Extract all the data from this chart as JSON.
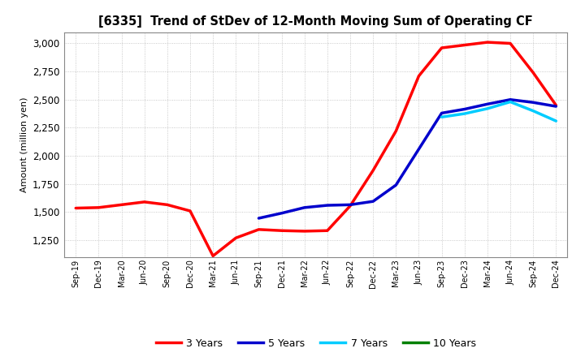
{
  "title": "[6335]  Trend of StDev of 12-Month Moving Sum of Operating CF",
  "ylabel": "Amount (million yen)",
  "background_color": "#ffffff",
  "plot_bg_color": "#ffffff",
  "grid_color": "#bbbbbb",
  "ylim": [
    1100,
    3100
  ],
  "yticks": [
    1250,
    1500,
    1750,
    2000,
    2250,
    2500,
    2750,
    3000
  ],
  "x_labels": [
    "Sep-19",
    "Dec-19",
    "Mar-20",
    "Jun-20",
    "Sep-20",
    "Dec-20",
    "Mar-21",
    "Jun-21",
    "Sep-21",
    "Dec-21",
    "Mar-22",
    "Jun-22",
    "Sep-22",
    "Dec-22",
    "Mar-23",
    "Jun-23",
    "Sep-23",
    "Dec-23",
    "Mar-24",
    "Jun-24",
    "Sep-24",
    "Dec-24"
  ],
  "series": {
    "3 Years": {
      "color": "#ff0000",
      "linewidth": 2.5,
      "data": [
        1535,
        1540,
        1565,
        1590,
        1565,
        1510,
        1110,
        1270,
        1345,
        1335,
        1330,
        1335,
        1555,
        1870,
        2220,
        2710,
        2960,
        2985,
        3010,
        3000,
        2740,
        2450
      ]
    },
    "5 Years": {
      "color": "#0000cc",
      "linewidth": 2.5,
      "data": [
        null,
        null,
        null,
        null,
        null,
        null,
        null,
        null,
        1445,
        1490,
        1540,
        1560,
        1565,
        1595,
        1740,
        2060,
        2380,
        2415,
        2460,
        2500,
        2475,
        2440
      ]
    },
    "7 Years": {
      "color": "#00ccff",
      "linewidth": 2.5,
      "data": [
        null,
        null,
        null,
        null,
        null,
        null,
        null,
        null,
        null,
        null,
        null,
        null,
        null,
        null,
        null,
        null,
        2345,
        2375,
        2420,
        2480,
        2400,
        2310
      ]
    },
    "10 Years": {
      "color": "#008000",
      "linewidth": 2.5,
      "data": [
        null,
        null,
        null,
        null,
        null,
        null,
        null,
        null,
        null,
        null,
        null,
        null,
        null,
        null,
        null,
        null,
        null,
        null,
        null,
        null,
        null,
        null
      ]
    }
  },
  "legend_labels": [
    "3 Years",
    "5 Years",
    "7 Years",
    "10 Years"
  ],
  "legend_colors": [
    "#ff0000",
    "#0000cc",
    "#00ccff",
    "#008000"
  ]
}
